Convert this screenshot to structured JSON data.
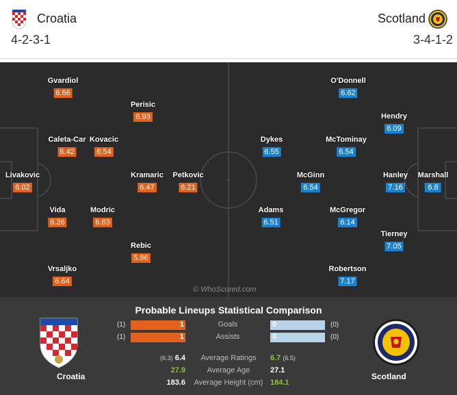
{
  "home": {
    "name": "Croatia",
    "formation": "4-2-3-1",
    "crest_icon": "croatia-crest-icon",
    "color": "#e4601d",
    "players": [
      {
        "name": "Gvardiol",
        "rating": "6.66"
      },
      {
        "name": "Perisic",
        "rating": "6.93"
      },
      {
        "name": "Caleta-Car",
        "rating": "6.42"
      },
      {
        "name": "Kovacic",
        "rating": "6.54"
      },
      {
        "name": "Livakovic",
        "rating": "6.02"
      },
      {
        "name": "Kramaric",
        "rating": "6.47"
      },
      {
        "name": "Petkovic",
        "rating": "6.21"
      },
      {
        "name": "Vida",
        "rating": "6.26"
      },
      {
        "name": "Modric",
        "rating": "6.83"
      },
      {
        "name": "Rebic",
        "rating": "5.86"
      },
      {
        "name": "Vrsaljko",
        "rating": "6.64"
      }
    ]
  },
  "away": {
    "name": "Scotland",
    "formation": "3-4-1-2",
    "crest_icon": "scotland-crest-icon",
    "color": "#1a82d1",
    "players": [
      {
        "name": "O'Donnell",
        "rating": "6.62"
      },
      {
        "name": "Hendry",
        "rating": "6.09"
      },
      {
        "name": "Dykes",
        "rating": "6.55"
      },
      {
        "name": "McTominay",
        "rating": "6.54"
      },
      {
        "name": "McGinn",
        "rating": "6.54"
      },
      {
        "name": "Hanley",
        "rating": "7.16"
      },
      {
        "name": "Marshall",
        "rating": "6.8"
      },
      {
        "name": "Adams",
        "rating": "6.51"
      },
      {
        "name": "McGregor",
        "rating": "6.14"
      },
      {
        "name": "Tierney",
        "rating": "7.05"
      },
      {
        "name": "Robertson",
        "rating": "7.17"
      }
    ]
  },
  "watermark": "© WhoScored.com",
  "comparison": {
    "title": "Probable Lineups Statistical Comparison",
    "home_name": "Croatia",
    "away_name": "Scotland",
    "bars": [
      {
        "label": "Goals",
        "home_count": "(1)",
        "home_value": "1",
        "away_value": "0",
        "away_count": "(0)"
      },
      {
        "label": "Assists",
        "home_count": "(1)",
        "home_value": "1",
        "away_value": "0",
        "away_count": "(0)"
      }
    ],
    "averages": [
      {
        "label": "Average Ratings",
        "home_prefix": "(6.3)",
        "home_value": "6.4",
        "away_value": "6.7",
        "away_suffix": "(6.5)"
      },
      {
        "label": "Average Age",
        "home_prefix": "",
        "home_value": "27.9",
        "away_value": "27.1",
        "away_suffix": ""
      },
      {
        "label": "Average Height (cm)",
        "home_prefix": "",
        "home_value": "183.6",
        "away_value": "184.1",
        "away_suffix": ""
      }
    ]
  }
}
